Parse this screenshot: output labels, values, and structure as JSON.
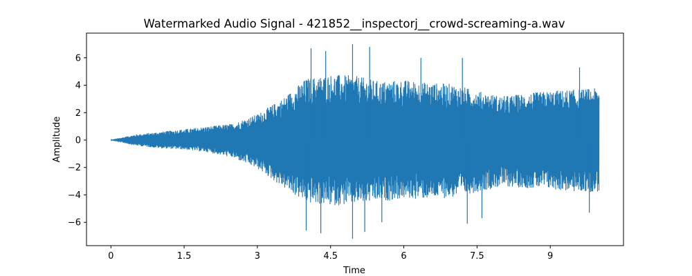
{
  "chart_data": {
    "type": "line",
    "title": "Watermarked Audio Signal - 421852__inspectorj__crowd-screaming-a.wav",
    "xlabel": "Time",
    "ylabel": "Amplitude",
    "xlim": [
      -0.5,
      10.5
    ],
    "ylim": [
      -7.7,
      7.8
    ],
    "x_ticks": [
      0,
      1.5,
      3,
      4.5,
      6,
      7.5,
      9
    ],
    "x_tick_labels": [
      "0",
      "1.5",
      "3",
      "4.5",
      "6",
      "7.5",
      "9"
    ],
    "y_ticks": [
      -6,
      -4,
      -2,
      0,
      2,
      4,
      6
    ],
    "y_tick_labels": [
      "−6",
      "−4",
      "−2",
      "0",
      "2",
      "4",
      "6"
    ],
    "grid": false,
    "series": [
      {
        "color": "#1f77b4",
        "x_range": [
          0,
          10
        ],
        "envelope": {
          "t": [
            0,
            0.5,
            1,
            1.5,
            2,
            2.5,
            3,
            3.5,
            4,
            4.5,
            5,
            5.5,
            6,
            6.5,
            7,
            7.5,
            8,
            8.5,
            9,
            9.5,
            10
          ],
          "upper": [
            0.02,
            0.4,
            0.6,
            0.8,
            1.0,
            1.2,
            1.9,
            3.0,
            4.5,
            4.8,
            4.7,
            4.3,
            4.4,
            4.2,
            4.1,
            3.6,
            3.2,
            3.4,
            3.6,
            3.7,
            3.8
          ],
          "lower": [
            -0.02,
            -0.4,
            -0.6,
            -0.7,
            -0.9,
            -1.3,
            -2.1,
            -3.4,
            -4.6,
            -4.8,
            -4.7,
            -4.5,
            -4.3,
            -4.3,
            -4.2,
            -3.8,
            -3.4,
            -3.5,
            -3.6,
            -3.8,
            -3.8
          ]
        },
        "peaks": [
          {
            "x": 4.1,
            "y": 6.7
          },
          {
            "x": 4.4,
            "y": 6.5
          },
          {
            "x": 4.95,
            "y": 7.0
          },
          {
            "x": 5.3,
            "y": 6.8
          },
          {
            "x": 6.35,
            "y": 6.0
          },
          {
            "x": 7.2,
            "y": 6.0
          },
          {
            "x": 9.6,
            "y": 5.3
          },
          {
            "x": 4.0,
            "y": -6.6
          },
          {
            "x": 4.3,
            "y": -6.8
          },
          {
            "x": 4.95,
            "y": -7.2
          },
          {
            "x": 5.2,
            "y": -6.7
          },
          {
            "x": 5.55,
            "y": -6.0
          },
          {
            "x": 7.3,
            "y": -6.1
          },
          {
            "x": 7.6,
            "y": -5.7
          },
          {
            "x": 9.8,
            "y": -5.3
          }
        ]
      }
    ]
  }
}
